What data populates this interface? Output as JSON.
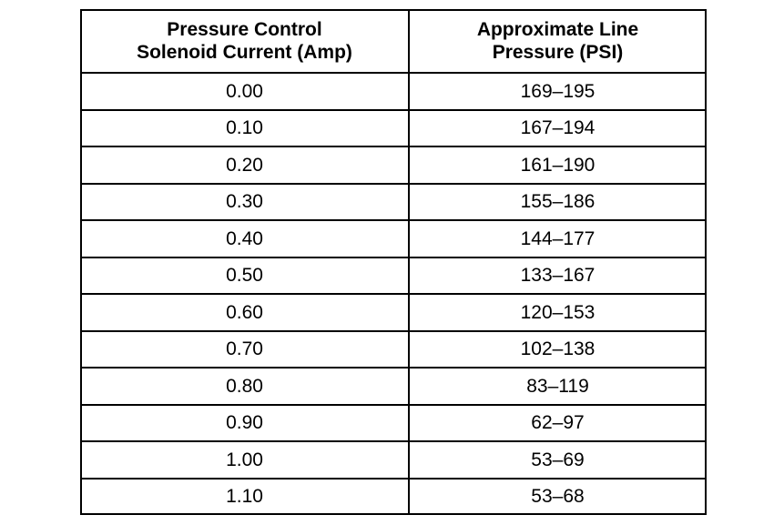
{
  "table": {
    "header": [
      [
        "Pressure Control",
        "Solenoid Current (Amp)"
      ],
      [
        "Approximate Line",
        "Pressure (PSI)"
      ]
    ],
    "rows": [
      [
        "0.00",
        "169–195"
      ],
      [
        "0.10",
        "167–194"
      ],
      [
        "0.20",
        "161–190"
      ],
      [
        "0.30",
        "155–186"
      ],
      [
        "0.40",
        "144–177"
      ],
      [
        "0.50",
        "133–167"
      ],
      [
        "0.60",
        "120–153"
      ],
      [
        "0.70",
        "102–138"
      ],
      [
        "0.80",
        "83–119"
      ],
      [
        "0.90",
        "62–97"
      ],
      [
        "1.00",
        "53–69"
      ],
      [
        "1.10",
        "53–68"
      ]
    ]
  }
}
